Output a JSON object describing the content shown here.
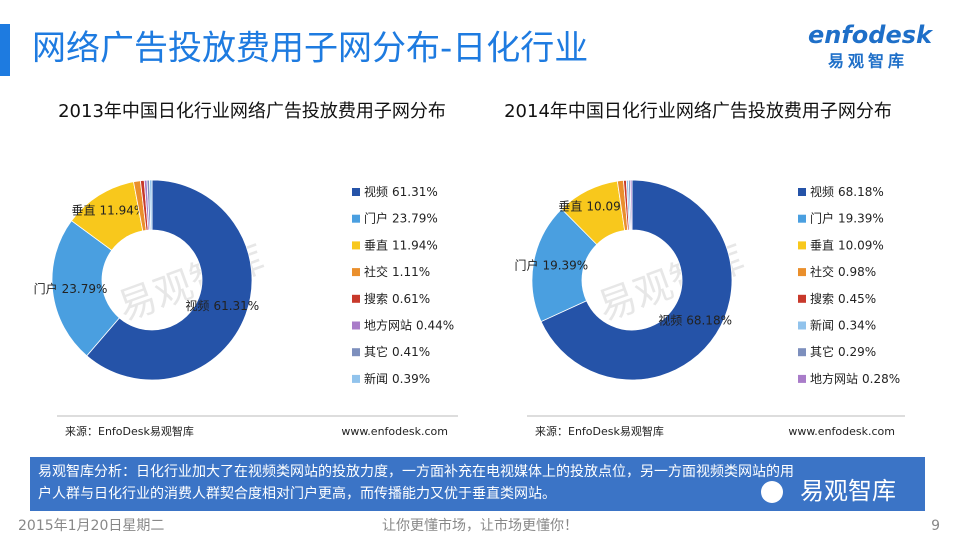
{
  "header": {
    "title": "网络广告投放费用子网分布-日化行业",
    "logo": "enfodesk",
    "logo_cn": "易观智库"
  },
  "chart_data": [
    {
      "type": "pie",
      "title": "2013年中国日化行业网络广告投放费用子网分布",
      "categories": [
        "视频",
        "门户",
        "垂直",
        "社交",
        "搜索",
        "地方网站",
        "其它",
        "新闻"
      ],
      "values": [
        61.31,
        23.79,
        11.94,
        1.11,
        0.61,
        0.44,
        0.41,
        0.39
      ],
      "value_labels": [
        "61.31%",
        "23.79%",
        "11.94%",
        "1.11%",
        "0.61%",
        "0.44%",
        "0.41%",
        "0.39%"
      ],
      "colors": [
        "#2553a8",
        "#4a9fe0",
        "#f8c81c",
        "#ea8f2c",
        "#c8392b",
        "#a97cc9",
        "#7d8fbd",
        "#91c3ec"
      ],
      "source": "来源：EnfoDesk易观智库",
      "website": "www.enfodesk.com"
    },
    {
      "type": "pie",
      "title": "2014年中国日化行业网络广告投放费用子网分布",
      "categories": [
        "视频",
        "门户",
        "垂直",
        "社交",
        "搜索",
        "新闻",
        "其它",
        "地方网站"
      ],
      "values": [
        68.18,
        19.39,
        10.09,
        0.98,
        0.45,
        0.34,
        0.29,
        0.28
      ],
      "value_labels": [
        "68.18%",
        "19.39%",
        "10.09%",
        "0.98%",
        "0.45%",
        "0.34%",
        "0.29%",
        "0.28%"
      ],
      "colors": [
        "#2553a8",
        "#4a9fe0",
        "#f8c81c",
        "#ea8f2c",
        "#c8392b",
        "#91c3ec",
        "#7d8fbd",
        "#a97cc9"
      ],
      "source": "来源：EnfoDesk易观智库",
      "website": "www.enfodesk.com"
    }
  ],
  "watermark": "易观智库",
  "analysis": [
    "易观智库分析：日化行业加大了在视频类网站的投放力度，一方面补充在电视媒体上的投放点位，另一方面视频类网站的用",
    "户人群与日化行业的消费人群契合度相对门户更高，而传播能力又优于垂直类网站。"
  ],
  "wechat": "易观智库",
  "footer": {
    "date": "2015年1月20日星期二",
    "slogan": "让你更懂市场，让市场更懂你！",
    "page": "9"
  }
}
